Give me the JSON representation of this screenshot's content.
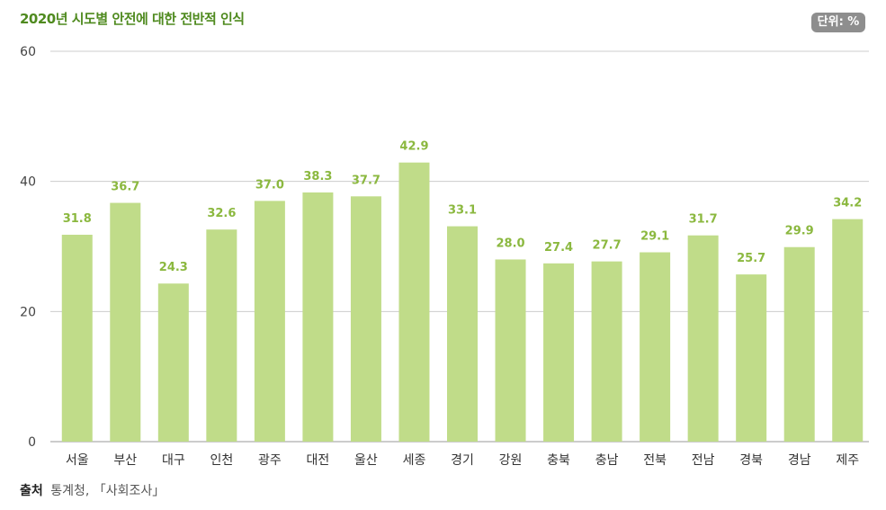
{
  "title": "2020년 시도별 안전에 대한 전반적 인식",
  "unit_badge": "단위: %",
  "source": {
    "label": "출처",
    "text": "통계청, 「사회조사」"
  },
  "colors": {
    "bar": "#c0dc89",
    "data_label": "#8bb83f",
    "grid": "#cccccc",
    "title": "#4f8a1f"
  },
  "chart_data": {
    "type": "bar",
    "title": "2020년 시도별 안전에 대한 전반적 인식",
    "xlabel": "",
    "ylabel": "",
    "unit": "%",
    "ylim": [
      0,
      60
    ],
    "yticks": [
      0,
      20,
      40,
      60
    ],
    "grid": true,
    "legend": "none",
    "categories": [
      "서울",
      "부산",
      "대구",
      "인천",
      "광주",
      "대전",
      "울산",
      "세종",
      "경기",
      "강원",
      "충북",
      "충남",
      "전북",
      "전남",
      "경북",
      "경남",
      "제주"
    ],
    "values": [
      31.8,
      36.7,
      24.3,
      32.6,
      37.0,
      38.3,
      37.7,
      42.9,
      33.1,
      28.0,
      27.4,
      27.7,
      29.1,
      31.7,
      25.7,
      29.9,
      34.2
    ],
    "value_labels": [
      "31.8",
      "36.7",
      "24.3",
      "32.6",
      "37.0",
      "38.3",
      "37.7",
      "42.9",
      "33.1",
      "28.0",
      "27.4",
      "27.7",
      "29.1",
      "31.7",
      "25.7",
      "29.9",
      "34.2"
    ]
  }
}
